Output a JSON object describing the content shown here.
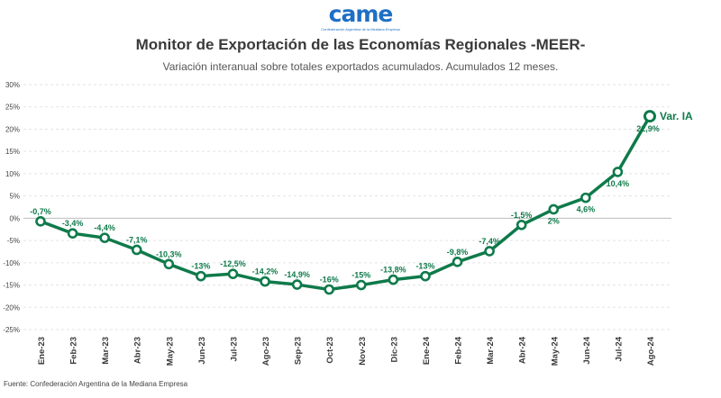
{
  "header": {
    "logo_text": "came",
    "logo_subtext": "Confederación Argentina de la Mediana Empresa",
    "title": "Monitor de Exportación de las Economías Regionales -MEER-",
    "subtitle": "Variación interanual sobre totales exportados acumulados. Acumulados 12 meses."
  },
  "footer": {
    "source": "Fuente: Confederación Argentina de la Mediana Empresa"
  },
  "colors": {
    "line": "#0f7a4a",
    "grid": "#e3e3e3",
    "zero_line": "#bdbdbd"
  },
  "chart_data": {
    "type": "line",
    "title": "Monitor de Exportación de las Economías Regionales -MEER-",
    "subtitle": "Variación interanual sobre totales exportados acumulados. Acumulados 12 meses.",
    "xlabel": "",
    "ylabel": "",
    "ylim": [
      -25,
      30
    ],
    "yticks": [
      30,
      25,
      20,
      15,
      10,
      5,
      0,
      -5,
      -10,
      -15,
      -20,
      -25
    ],
    "ytick_labels": [
      "30%",
      "25%",
      "20%",
      "15%",
      "10%",
      "5%",
      "0%",
      "-5%",
      "-10%",
      "-15%",
      "-20%",
      "-25%"
    ],
    "grid": true,
    "categories": [
      "Ene-23",
      "Feb-23",
      "Mar-23",
      "Abr-23",
      "May-23",
      "Jun-23",
      "Jul-23",
      "Ago-23",
      "Sep-23",
      "Oct-23",
      "Nov-23",
      "Dic-23",
      "Ene-24",
      "Feb-24",
      "Mar-24",
      "Abr-24",
      "May-24",
      "Jun-24",
      "Jul-24",
      "Ago-24"
    ],
    "series": [
      {
        "name": "Var. IA",
        "values": [
          -0.7,
          -3.4,
          -4.4,
          -7.1,
          -10.3,
          -13,
          -12.5,
          -14.2,
          -14.9,
          -16,
          -15,
          -13.8,
          -13,
          -9.8,
          -7.4,
          -1.5,
          2,
          4.6,
          10.4,
          22.9
        ],
        "labels": [
          "-0,7%",
          "-3,4%",
          "-4,4%",
          "-7,1%",
          "-10,3%",
          "-13%",
          "-12,5%",
          "-14,2%",
          "-14,9%",
          "-16%",
          "-15%",
          "-13,8%",
          "-13%",
          "-9,8%",
          "-7,4%",
          "-1,5%",
          "2%",
          "4,6%",
          "10,4%",
          "22,9%"
        ],
        "label_positions": [
          "above",
          "above",
          "above",
          "above",
          "above",
          "above",
          "above",
          "above",
          "above",
          "above",
          "above",
          "above",
          "above",
          "above",
          "above",
          "above",
          "below",
          "below",
          "below",
          "below"
        ]
      }
    ]
  }
}
